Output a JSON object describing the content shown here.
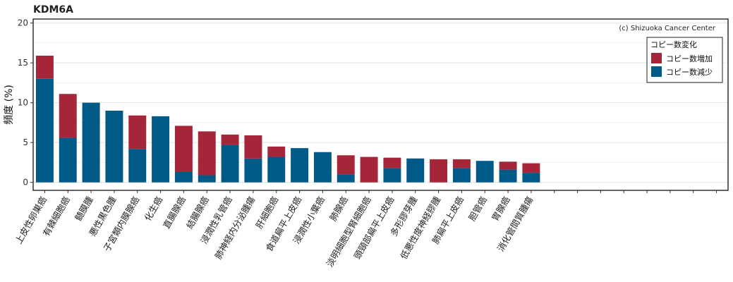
{
  "chart_data": {
    "type": "bar",
    "stacked": true,
    "title": "KDM6A",
    "credit": "(c) Shizuoka Cancer Center",
    "ylabel": "頻度 (%)",
    "xlabel": "",
    "ylim": [
      -1,
      20.5
    ],
    "yticks": [
      0,
      5,
      10,
      15,
      20
    ],
    "grid": true,
    "legend_position": "top-right",
    "legend_title": "コピー数変化",
    "categories": [
      "上皮性卵巣癌",
      "有棘細胞癌",
      "髄膜腫",
      "悪性黒色腫",
      "子宮類内膜腺癌",
      "化生癌",
      "直腸腺癌",
      "結腸腺癌",
      "浸潤性乳管癌",
      "肺神経内分泌腫瘍",
      "肝細胞癌",
      "食道扁平上皮癌",
      "浸潤性小葉癌",
      "肺腺癌",
      "淡明細胞型腎細胞癌",
      "頭頸部扁平上皮癌",
      "多形膠芽腫",
      "低悪性度神経膠腫",
      "肺扁平上皮癌",
      "胆管癌",
      "胃腺癌",
      "消化管間質腫瘍"
    ],
    "empty_slots": 8,
    "series": [
      {
        "name": "コピー数減少",
        "color": "#005a87",
        "values": [
          13.0,
          5.6,
          10.0,
          9.0,
          4.2,
          8.3,
          1.3,
          0.9,
          4.7,
          3.0,
          3.2,
          4.3,
          3.8,
          1.0,
          0.0,
          1.8,
          3.0,
          0.0,
          1.8,
          2.7,
          1.6,
          1.2
        ]
      },
      {
        "name": "コピー数増加",
        "color": "#a62639",
        "values": [
          2.9,
          5.5,
          0.0,
          0.0,
          4.2,
          0.0,
          5.8,
          5.5,
          1.3,
          2.9,
          1.3,
          0.0,
          0.0,
          2.4,
          3.2,
          1.3,
          0.0,
          2.9,
          1.1,
          0.0,
          1.0,
          1.2
        ]
      }
    ]
  }
}
